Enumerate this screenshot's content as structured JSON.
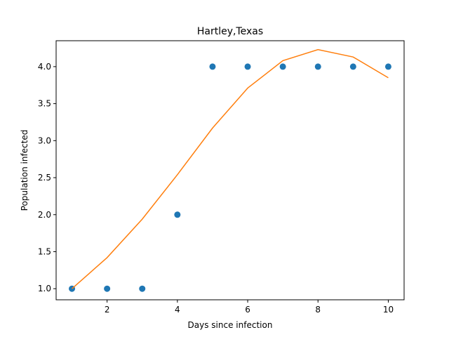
{
  "chart_data": {
    "type": "scatter",
    "title": "Hartley,Texas",
    "xlabel": "Days since infection",
    "ylabel": "Population infected",
    "xlim": [
      0.55,
      10.45
    ],
    "ylim": [
      0.85,
      4.35
    ],
    "xticks": [
      2,
      4,
      6,
      8,
      10
    ],
    "xtick_labels": [
      "2",
      "4",
      "6",
      "8",
      "10"
    ],
    "yticks": [
      1.0,
      1.5,
      2.0,
      2.5,
      3.0,
      3.5,
      4.0
    ],
    "ytick_labels": [
      "1.0",
      "1.5",
      "2.0",
      "2.5",
      "3.0",
      "3.5",
      "4.0"
    ],
    "grid": false,
    "series": [
      {
        "kind": "scatter",
        "color": "#1f77b4",
        "x": [
          1,
          2,
          3,
          4,
          5,
          6,
          7,
          8,
          9,
          10
        ],
        "y": [
          1,
          1,
          1,
          2,
          4,
          4,
          4,
          4,
          4,
          4
        ]
      },
      {
        "kind": "line",
        "color": "#ff7f0e",
        "x": [
          1,
          2,
          3,
          4,
          5,
          6,
          7,
          8,
          9,
          10
        ],
        "y": [
          1.0,
          1.42,
          1.94,
          2.54,
          3.17,
          3.71,
          4.08,
          4.23,
          4.13,
          3.85
        ]
      }
    ]
  }
}
